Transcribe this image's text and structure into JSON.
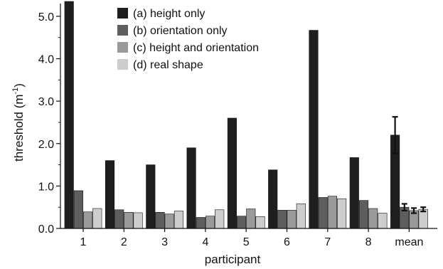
{
  "chart_data": {
    "type": "bar",
    "xlabel": "participant",
    "ylabel": "threshold (m",
    "ylabel_superscript": "-1",
    "ylabel_suffix": ")",
    "ylim": [
      0,
      5.3
    ],
    "yticks": [
      "0.0",
      "1.0",
      "2.0",
      "3.0",
      "4.0",
      "5.0"
    ],
    "categories": [
      "1",
      "2",
      "3",
      "4",
      "5",
      "6",
      "7",
      "8",
      "mean"
    ],
    "legend_position": "top-center",
    "series": [
      {
        "name": "(a) height only",
        "color": "#1e1e1e",
        "values": [
          5.35,
          1.6,
          1.5,
          1.9,
          2.6,
          1.38,
          4.67,
          1.67,
          2.2
        ],
        "error": [
          null,
          null,
          null,
          null,
          null,
          null,
          null,
          null,
          0.43
        ]
      },
      {
        "name": "(b) orientation only",
        "color": "#5e5e5e",
        "values": [
          0.89,
          0.44,
          0.38,
          0.26,
          0.29,
          0.43,
          0.73,
          0.66,
          0.5
        ],
        "error": [
          null,
          null,
          null,
          null,
          null,
          null,
          null,
          null,
          0.08
        ]
      },
      {
        "name": "(c) height and orientation",
        "color": "#9a9a9a",
        "values": [
          0.39,
          0.38,
          0.34,
          0.29,
          0.46,
          0.43,
          0.76,
          0.47,
          0.42
        ],
        "error": [
          null,
          null,
          null,
          null,
          null,
          null,
          null,
          null,
          0.06
        ]
      },
      {
        "name": "(d) real shape",
        "color": "#cdcdcd",
        "values": [
          0.47,
          0.37,
          0.41,
          0.44,
          0.28,
          0.58,
          0.7,
          0.36,
          0.45
        ],
        "error": [
          null,
          null,
          null,
          null,
          null,
          null,
          null,
          null,
          0.05
        ]
      }
    ]
  }
}
